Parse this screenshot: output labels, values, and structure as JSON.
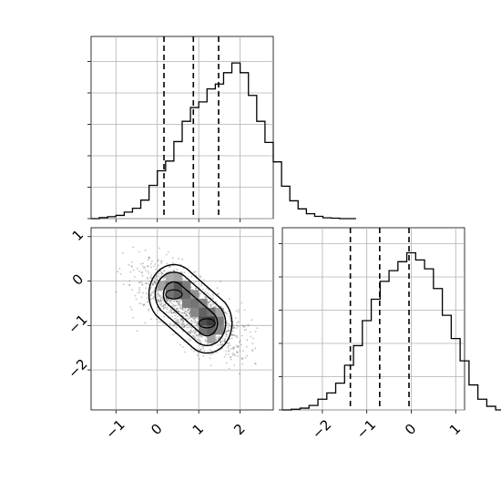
{
  "chart_data": {
    "type": "corner",
    "title": "",
    "parameters": [
      {
        "xlabel": "",
        "quantiles": [
          0.16,
          0.87,
          1.48
        ],
        "hist_range": [
          -1.6,
          2.8
        ],
        "bin_width": 0.2,
        "hist_counts": [
          0.0,
          0.006,
          0.012,
          0.02,
          0.04,
          0.064,
          0.114,
          0.205,
          0.295,
          0.355,
          0.475,
          0.6,
          0.685,
          0.72,
          0.8,
          0.83,
          0.9,
          0.96,
          0.9,
          0.76,
          0.6,
          0.47,
          0.35,
          0.2,
          0.11,
          0.06,
          0.03,
          0.014,
          0.005,
          0.003,
          0.0,
          0.0
        ]
      },
      {
        "xlabel": "",
        "quantiles": [
          -1.37,
          -0.71,
          -0.05
        ],
        "hist_range": [
          -2.9,
          1.2
        ],
        "bin_width": 0.2,
        "hist_counts": [
          0.0,
          0.004,
          0.01,
          0.025,
          0.06,
          0.095,
          0.15,
          0.25,
          0.36,
          0.5,
          0.62,
          0.72,
          0.78,
          0.83,
          0.88,
          0.84,
          0.79,
          0.68,
          0.53,
          0.4,
          0.275,
          0.14,
          0.06,
          0.02,
          0.0
        ]
      }
    ],
    "joint": {
      "x_range": [
        -1.6,
        2.8
      ],
      "y_range": [
        -2.9,
        1.2
      ],
      "x_ticks": [
        "−1",
        "0",
        "1",
        "2"
      ],
      "y_ticks": [
        "−2",
        "−1",
        "0",
        "1"
      ],
      "density_peaks": [
        {
          "x": 0.4,
          "y": -0.3
        },
        {
          "x": 1.2,
          "y": -0.95
        }
      ],
      "contour_levels": 3
    },
    "marginal_y_ticks": [
      "−2",
      "−1",
      "0",
      "1"
    ],
    "grid": true,
    "legend": "none"
  }
}
